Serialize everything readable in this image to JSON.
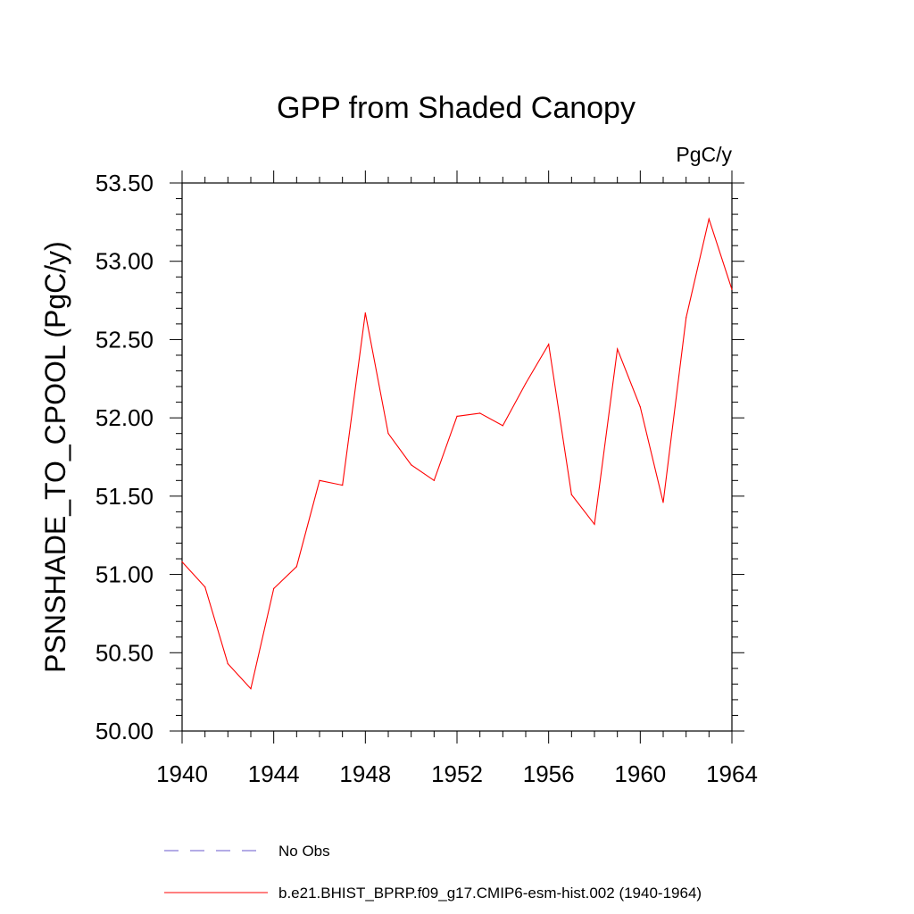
{
  "chart_data": {
    "type": "line",
    "title": "GPP from Shaded Canopy",
    "units_label": "PgC/y",
    "ylabel": "PSNSHADE_TO_CPOOL  (PgC/y)",
    "xlabel": "",
    "xlim": [
      1940,
      1964
    ],
    "ylim": [
      50.0,
      53.5
    ],
    "x_ticks": [
      1940,
      1944,
      1948,
      1952,
      1956,
      1960,
      1964
    ],
    "x_tick_labels": [
      "1940",
      "1944",
      "1948",
      "1952",
      "1956",
      "1960",
      "1964"
    ],
    "y_ticks": [
      50.0,
      50.5,
      51.0,
      51.5,
      52.0,
      52.5,
      53.0,
      53.5
    ],
    "y_tick_labels": [
      "50.00",
      "50.50",
      "51.00",
      "51.50",
      "52.00",
      "52.50",
      "53.00",
      "53.50"
    ],
    "grid": false,
    "legend_placement": "bottom",
    "legend": [
      {
        "name": "No Obs",
        "color": "#6a5acd",
        "style": "dashed"
      },
      {
        "name": "b.e21.BHIST_BPRP.f09_g17.CMIP6-esm-hist.002 (1940-1964)",
        "color": "#ff0000",
        "style": "solid"
      }
    ],
    "series": [
      {
        "name": "b.e21.BHIST_BPRP.f09_g17.CMIP6-esm-hist.002 (1940-1964)",
        "color": "#ff0000",
        "x": [
          1940,
          1941,
          1942,
          1943,
          1944,
          1945,
          1946,
          1947,
          1948,
          1949,
          1950,
          1951,
          1952,
          1953,
          1954,
          1955,
          1956,
          1957,
          1958,
          1959,
          1960,
          1961,
          1962,
          1963,
          1964
        ],
        "values": [
          51.08,
          50.92,
          50.43,
          50.27,
          50.91,
          51.05,
          51.6,
          51.57,
          52.67,
          51.9,
          51.7,
          51.6,
          52.01,
          52.03,
          51.95,
          52.22,
          52.47,
          51.51,
          51.32,
          52.44,
          52.07,
          51.46,
          52.64,
          53.27,
          52.82
        ]
      }
    ]
  }
}
